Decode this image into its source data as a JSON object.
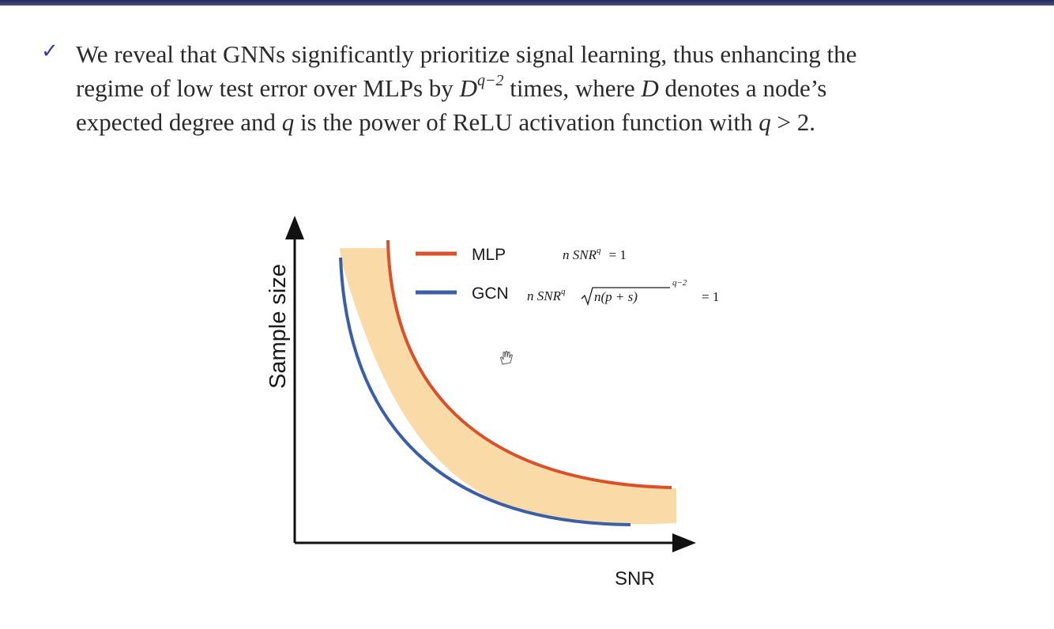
{
  "bullet": {
    "line1": "We reveal that GNNs significantly prioritize signal learning, thus enhancing the",
    "line2_a": "regime of low test error over MLPs by ",
    "line2_D": "D",
    "line2_exp": "q−2",
    "line2_b": " times, where ",
    "line2_D2": "D",
    "line2_c": " denotes a node’s",
    "line3_a": "expected degree and ",
    "line3_q": "q",
    "line3_b": " is the power of ReLU activation function with ",
    "line3_q2": "q",
    "line3_c": " > 2."
  },
  "diagram": {
    "y_axis_label": "Sample size",
    "x_axis_label": "SNR",
    "legend": [
      {
        "name": "MLP",
        "color": "#d9502b",
        "formula_lhs": "n SNR",
        "formula_exp": "q",
        "formula_rhs": "= 1"
      },
      {
        "name": "GCN",
        "color": "#3b5ea8",
        "formula_lhs": "n SNR",
        "formula_exp": "q",
        "formula_sqrt": "n(p + s)",
        "formula_sqrt_exp": "q−2",
        "formula_rhs": "= 1"
      }
    ],
    "band_color": "#fadba8",
    "axis_color": "#111111"
  }
}
